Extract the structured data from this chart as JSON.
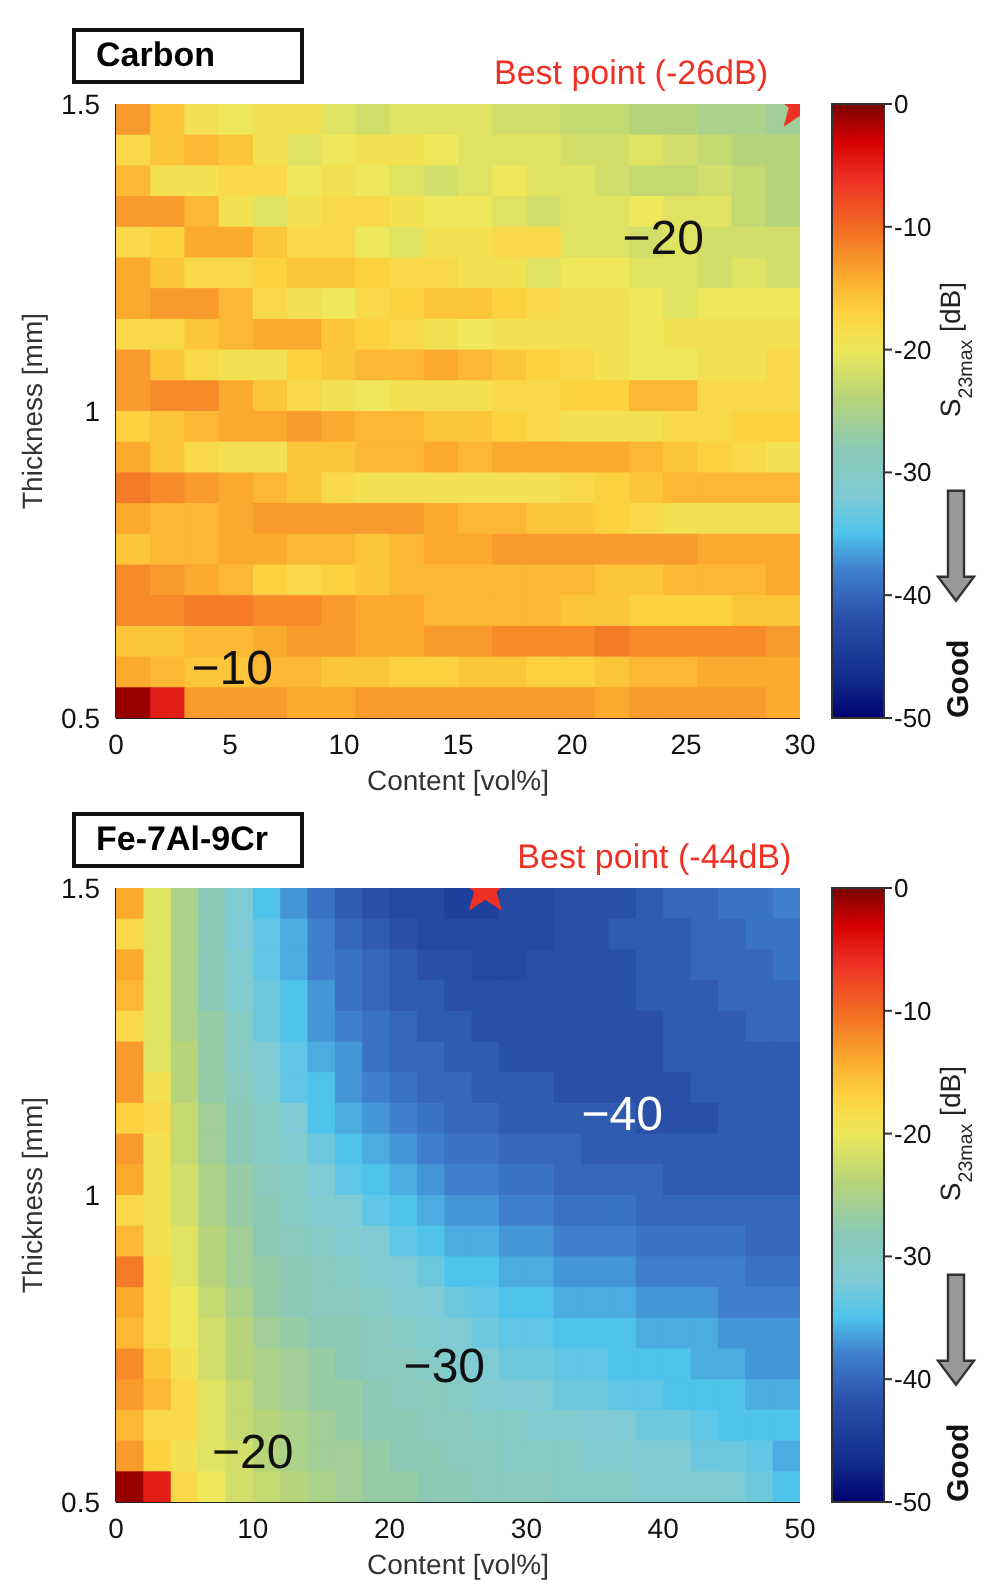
{
  "chart_data": [
    {
      "type": "heatmap",
      "title": "Carbon",
      "xlabel": "Content [vol%]",
      "ylabel": "Thickness [mm]",
      "clabel": "S$_{23max}$ [dB]",
      "xlim": [
        0,
        30
      ],
      "xticks": [
        0,
        5,
        10,
        15,
        20,
        25,
        30
      ],
      "ylim": [
        0.5,
        1.5
      ],
      "yticks": [
        0.5,
        1,
        1.5
      ],
      "clim": [
        -50,
        0
      ],
      "cticks": [
        -50,
        -40,
        -30,
        -20,
        -10,
        0
      ],
      "marker": "star",
      "x": [
        0.75,
        2.25,
        3.75,
        5.25,
        6.75,
        8.25,
        9.75,
        11.25,
        12.75,
        14.25,
        15.75,
        17.25,
        18.75,
        20.25,
        21.75,
        23.25,
        24.75,
        26.25,
        27.75,
        29.25
      ],
      "y": [
        1.475,
        1.425,
        1.375,
        1.325,
        1.275,
        1.225,
        1.175,
        1.125,
        1.075,
        1.025,
        0.975,
        0.925,
        0.875,
        0.825,
        0.775,
        0.725,
        0.675,
        0.625,
        0.575,
        0.525
      ],
      "cells": [
        [
          -13,
          -16,
          -19,
          -20,
          -19,
          -19,
          -21,
          -22,
          -21,
          -21,
          -21,
          -22,
          -22,
          -23,
          -23,
          -24,
          -24,
          -25,
          -25,
          -26
        ],
        [
          -18,
          -16,
          -15,
          -16,
          -19,
          -21,
          -20,
          -19,
          -19,
          -20,
          -21,
          -21,
          -21,
          -22,
          -22,
          -21,
          -22,
          -23,
          -24,
          -24
        ],
        [
          -15,
          -19,
          -19,
          -18,
          -18,
          -20,
          -19,
          -20,
          -21,
          -22,
          -21,
          -20,
          -21,
          -21,
          -22,
          -23,
          -23,
          -22,
          -23,
          -24
        ],
        [
          -13,
          -13,
          -15,
          -19,
          -21,
          -19,
          -18,
          -18,
          -19,
          -20,
          -20,
          -21,
          -22,
          -21,
          -21,
          -20,
          -21,
          -21,
          -23,
          -24
        ],
        [
          -18,
          -17,
          -14,
          -14,
          -16,
          -18,
          -18,
          -20,
          -21,
          -19,
          -19,
          -18,
          -18,
          -21,
          -21,
          -22,
          -21,
          -22,
          -22,
          -22
        ],
        [
          -14,
          -16,
          -18,
          -18,
          -17,
          -16,
          -16,
          -17,
          -18,
          -18,
          -19,
          -19,
          -21,
          -20,
          -20,
          -21,
          -21,
          -22,
          -21,
          -22
        ],
        [
          -14,
          -13,
          -13,
          -15,
          -18,
          -19,
          -20,
          -18,
          -17,
          -16,
          -16,
          -17,
          -18,
          -19,
          -19,
          -20,
          -21,
          -20,
          -20,
          -20
        ],
        [
          -18,
          -18,
          -16,
          -15,
          -14,
          -14,
          -16,
          -17,
          -18,
          -19,
          -20,
          -19,
          -19,
          -19,
          -19,
          -20,
          -19,
          -19,
          -19,
          -19
        ],
        [
          -13,
          -16,
          -18,
          -19,
          -19,
          -17,
          -16,
          -15,
          -15,
          -14,
          -15,
          -16,
          -17,
          -18,
          -19,
          -20,
          -20,
          -19,
          -19,
          -18
        ],
        [
          -13,
          -12,
          -12,
          -14,
          -16,
          -18,
          -19,
          -20,
          -19,
          -19,
          -19,
          -18,
          -18,
          -17,
          -17,
          -15,
          -15,
          -18,
          -18,
          -18
        ],
        [
          -17,
          -16,
          -15,
          -14,
          -14,
          -13,
          -14,
          -15,
          -15,
          -16,
          -16,
          -17,
          -18,
          -19,
          -19,
          -19,
          -18,
          -18,
          -17,
          -17
        ],
        [
          -14,
          -16,
          -18,
          -19,
          -19,
          -16,
          -16,
          -15,
          -15,
          -14,
          -15,
          -14,
          -14,
          -14,
          -14,
          -15,
          -16,
          -17,
          -18,
          -19
        ],
        [
          -11,
          -12,
          -13,
          -14,
          -15,
          -16,
          -18,
          -19,
          -19,
          -19,
          -19,
          -19,
          -19,
          -18,
          -17,
          -16,
          -15,
          -15,
          -15,
          -15
        ],
        [
          -14,
          -15,
          -15,
          -14,
          -13,
          -13,
          -13,
          -13,
          -13,
          -14,
          -15,
          -15,
          -16,
          -16,
          -17,
          -18,
          -19,
          -19,
          -19,
          -19
        ],
        [
          -16,
          -15,
          -15,
          -14,
          -14,
          -15,
          -15,
          -16,
          -15,
          -14,
          -14,
          -13,
          -13,
          -13,
          -13,
          -13,
          -13,
          -14,
          -14,
          -14
        ],
        [
          -12,
          -13,
          -14,
          -15,
          -17,
          -18,
          -17,
          -16,
          -15,
          -15,
          -15,
          -15,
          -15,
          -15,
          -16,
          -16,
          -15,
          -15,
          -15,
          -14
        ],
        [
          -12,
          -12,
          -11,
          -11,
          -12,
          -12,
          -13,
          -14,
          -14,
          -15,
          -15,
          -15,
          -15,
          -16,
          -16,
          -17,
          -17,
          -17,
          -16,
          -16
        ],
        [
          -16,
          -16,
          -15,
          -15,
          -14,
          -13,
          -13,
          -14,
          -14,
          -13,
          -13,
          -12,
          -12,
          -12,
          -11,
          -12,
          -12,
          -12,
          -12,
          -13
        ],
        [
          -14,
          -15,
          -16,
          -16,
          -15,
          -15,
          -16,
          -16,
          -17,
          -17,
          -16,
          -16,
          -17,
          -17,
          -16,
          -15,
          -15,
          -14,
          -14,
          -14
        ],
        [
          -1,
          -5,
          -13,
          -13,
          -13,
          -14,
          -14,
          -13,
          -13,
          -13,
          -13,
          -13,
          -13,
          -13,
          -14,
          -13,
          -13,
          -13,
          -13,
          -14
        ]
      ],
      "series": [
        {
          "type": "scatter",
          "x": [
            30
          ],
          "values": [
            1.5
          ],
          "color": "#ee3124"
        }
      ],
      "annotations": [
        {
          "text": "Best point (-26dB)",
          "x": 30,
          "y": 1.5
        },
        "−20",
        "−10",
        "Good"
      ]
    },
    {
      "type": "heatmap",
      "title": "Fe-7Al-9Cr",
      "xlabel": "Content [vol%]",
      "ylabel": "Thickness [mm]",
      "clabel": "S$_{23max}$ [dB]",
      "xlim": [
        0,
        50
      ],
      "xticks": [
        0,
        10,
        20,
        30,
        40,
        50
      ],
      "ylim": [
        0.5,
        1.5
      ],
      "yticks": [
        0.5,
        1,
        1.5
      ],
      "clim": [
        -50,
        0
      ],
      "cticks": [
        -50,
        -40,
        -30,
        -20,
        -10,
        0
      ],
      "marker": "star",
      "x": [
        1,
        3,
        5,
        7,
        9,
        11,
        13,
        15,
        17,
        19,
        21,
        23,
        25,
        27,
        29,
        31,
        33,
        35,
        37,
        39,
        41,
        43,
        45,
        47,
        49
      ],
      "y": [
        1.475,
        1.425,
        1.375,
        1.325,
        1.275,
        1.225,
        1.175,
        1.125,
        1.075,
        1.025,
        0.975,
        0.925,
        0.875,
        0.825,
        0.775,
        0.725,
        0.675,
        0.625,
        0.575,
        0.525
      ],
      "cells": [
        [
          -14,
          -21,
          -25,
          -28,
          -32,
          -35,
          -37,
          -39,
          -41,
          -42,
          -43,
          -43,
          -44,
          -44,
          -43,
          -43,
          -42,
          -42,
          -42,
          -41,
          -40,
          -40,
          -39,
          -39,
          -38
        ],
        [
          -18,
          -21,
          -25,
          -28,
          -32,
          -34,
          -36,
          -38,
          -40,
          -41,
          -42,
          -43,
          -43,
          -43,
          -43,
          -43,
          -42,
          -42,
          -41,
          -41,
          -41,
          -40,
          -40,
          -39,
          -39
        ],
        [
          -14,
          -21,
          -25,
          -28,
          -31,
          -34,
          -36,
          -38,
          -39,
          -40,
          -41,
          -42,
          -42,
          -43,
          -43,
          -42,
          -42,
          -42,
          -42,
          -41,
          -41,
          -40,
          -40,
          -40,
          -39
        ],
        [
          -15,
          -21,
          -25,
          -28,
          -31,
          -33,
          -35,
          -37,
          -39,
          -40,
          -41,
          -41,
          -42,
          -42,
          -42,
          -42,
          -42,
          -42,
          -42,
          -41,
          -41,
          -41,
          -40,
          -40,
          -40
        ],
        [
          -18,
          -21,
          -25,
          -27,
          -30,
          -33,
          -35,
          -37,
          -38,
          -39,
          -40,
          -41,
          -41,
          -42,
          -42,
          -42,
          -42,
          -42,
          -42,
          -42,
          -41,
          -41,
          -41,
          -40,
          -40
        ],
        [
          -13,
          -21,
          -24,
          -27,
          -30,
          -32,
          -34,
          -36,
          -37,
          -39,
          -40,
          -40,
          -41,
          -41,
          -42,
          -42,
          -42,
          -42,
          -42,
          -42,
          -41,
          -41,
          -41,
          -41,
          -41
        ],
        [
          -13,
          -19,
          -24,
          -27,
          -29,
          -31,
          -34,
          -35,
          -37,
          -38,
          -39,
          -40,
          -40,
          -41,
          -41,
          -41,
          -42,
          -42,
          -42,
          -42,
          -42,
          -41,
          -41,
          -41,
          -41
        ],
        [
          -17,
          -18,
          -23,
          -26,
          -28,
          -30,
          -32,
          -35,
          -36,
          -37,
          -38,
          -39,
          -40,
          -40,
          -41,
          -41,
          -41,
          -41,
          -41,
          -42,
          -42,
          -42,
          -41,
          -41,
          -41
        ],
        [
          -13,
          -19,
          -23,
          -26,
          -28,
          -30,
          -31,
          -33,
          -35,
          -36,
          -37,
          -38,
          -39,
          -39,
          -40,
          -40,
          -40,
          -41,
          -41,
          -41,
          -41,
          -41,
          -41,
          -41,
          -41
        ],
        [
          -14,
          -19,
          -22,
          -25,
          -27,
          -29,
          -30,
          -32,
          -34,
          -35,
          -36,
          -37,
          -38,
          -38,
          -39,
          -39,
          -40,
          -40,
          -40,
          -40,
          -41,
          -41,
          -41,
          -41,
          -41
        ],
        [
          -18,
          -19,
          -22,
          -25,
          -27,
          -28,
          -30,
          -31,
          -32,
          -34,
          -35,
          -36,
          -37,
          -37,
          -38,
          -38,
          -39,
          -39,
          -39,
          -40,
          -40,
          -40,
          -40,
          -40,
          -40
        ],
        [
          -15,
          -19,
          -21,
          -24,
          -26,
          -28,
          -29,
          -30,
          -31,
          -32,
          -34,
          -35,
          -36,
          -36,
          -37,
          -37,
          -38,
          -38,
          -38,
          -39,
          -39,
          -39,
          -39,
          -40,
          -40
        ],
        [
          -11,
          -18,
          -21,
          -24,
          -26,
          -27,
          -28,
          -29,
          -30,
          -31,
          -32,
          -33,
          -35,
          -35,
          -36,
          -36,
          -37,
          -37,
          -37,
          -38,
          -38,
          -38,
          -38,
          -39,
          -39
        ],
        [
          -14,
          -18,
          -20,
          -23,
          -25,
          -27,
          -28,
          -29,
          -29,
          -30,
          -31,
          -32,
          -33,
          -34,
          -35,
          -35,
          -36,
          -36,
          -36,
          -37,
          -37,
          -37,
          -38,
          -38,
          -38
        ],
        [
          -15,
          -18,
          -20,
          -22,
          -24,
          -26,
          -27,
          -28,
          -28,
          -29,
          -30,
          -31,
          -32,
          -33,
          -34,
          -34,
          -35,
          -35,
          -35,
          -36,
          -36,
          -36,
          -37,
          -37,
          -37
        ],
        [
          -12,
          -16,
          -19,
          -22,
          -24,
          -25,
          -26,
          -27,
          -28,
          -29,
          -29,
          -30,
          -31,
          -32,
          -33,
          -33,
          -34,
          -34,
          -35,
          -35,
          -35,
          -36,
          -36,
          -37,
          -37
        ],
        [
          -13,
          -15,
          -18,
          -21,
          -23,
          -25,
          -26,
          -27,
          -27,
          -28,
          -29,
          -29,
          -30,
          -31,
          -32,
          -32,
          -33,
          -33,
          -34,
          -34,
          -35,
          -35,
          -35,
          -36,
          -36
        ],
        [
          -15,
          -18,
          -18,
          -21,
          -23,
          -24,
          -25,
          -26,
          -27,
          -28,
          -28,
          -29,
          -29,
          -30,
          -30,
          -31,
          -31,
          -32,
          -32,
          -33,
          -33,
          -34,
          -35,
          -35,
          -35
        ],
        [
          -13,
          -17,
          -19,
          -21,
          -22,
          -24,
          -25,
          -26,
          -26,
          -27,
          -28,
          -28,
          -29,
          -29,
          -30,
          -30,
          -30,
          -31,
          -31,
          -32,
          -32,
          -33,
          -33,
          -34,
          -36
        ],
        [
          -1,
          -5,
          -18,
          -20,
          -22,
          -23,
          -24,
          -25,
          -26,
          -27,
          -27,
          -28,
          -28,
          -29,
          -29,
          -29,
          -30,
          -30,
          -30,
          -31,
          -31,
          -31,
          -32,
          -33,
          -35
        ]
      ],
      "series": [
        {
          "type": "scatter",
          "x": [
            27
          ],
          "values": [
            1.5
          ],
          "color": "#ee3124"
        }
      ],
      "annotations": [
        {
          "text": "Best point (-44dB)",
          "x": 27,
          "y": 1.5
        },
        "−40",
        "−30",
        "−20",
        "Good"
      ]
    }
  ]
}
